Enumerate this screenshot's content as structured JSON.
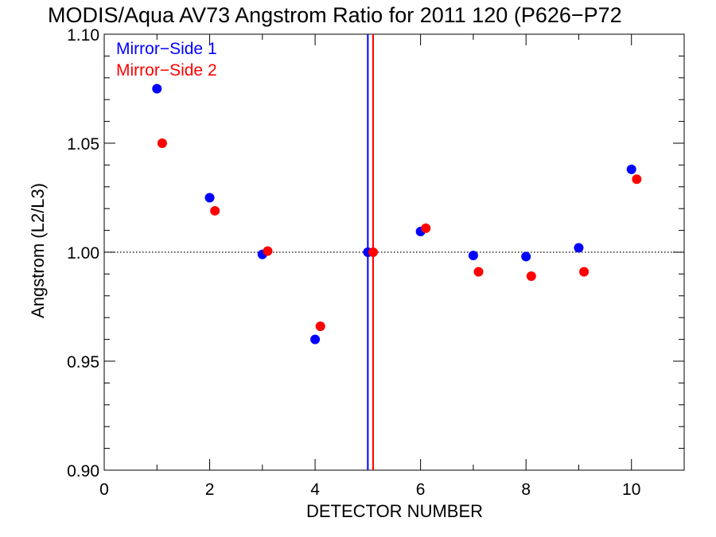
{
  "chart_data": {
    "type": "scatter",
    "title": "MODIS/Aqua AV73 Angstrom Ratio for 2011 120 (P626−P72",
    "xlabel": "DETECTOR NUMBER",
    "ylabel": "Angstrom (L2/L3)",
    "xlim": [
      0,
      11
    ],
    "ylim": [
      0.9,
      1.1
    ],
    "xticks": [
      0,
      2,
      4,
      6,
      8,
      10
    ],
    "xtick_labels": [
      "0",
      "2",
      "4",
      "6",
      "8",
      "10"
    ],
    "yticks": [
      0.9,
      0.95,
      1.0,
      1.05,
      1.1
    ],
    "ytick_labels": [
      "0.90",
      "0.95",
      "1.00",
      "1.05",
      "1.10"
    ],
    "legend_position": "top-left",
    "grid": false,
    "reference_line": {
      "y": 1.0,
      "style": "dotted",
      "color": "#000000"
    },
    "vertical_lines": [
      {
        "x": 5.0,
        "color": "#0000ff"
      },
      {
        "x": 5.1,
        "color": "#ff0000"
      }
    ],
    "series": [
      {
        "name": "Mirror−Side 1",
        "color": "#0000ff",
        "x": [
          1,
          2,
          3,
          4,
          5,
          6,
          7,
          8,
          9,
          10
        ],
        "y": [
          1.075,
          1.025,
          0.999,
          0.96,
          1.0,
          1.0095,
          0.9985,
          0.998,
          1.002,
          1.038
        ]
      },
      {
        "name": "Mirror−Side 2",
        "color": "#ff0000",
        "x": [
          1.1,
          2.1,
          3.1,
          4.1,
          5.1,
          6.1,
          7.1,
          8.1,
          9.1,
          10.1
        ],
        "y": [
          1.05,
          1.019,
          1.0005,
          0.966,
          1.0,
          1.011,
          0.991,
          0.989,
          0.991,
          1.0335
        ]
      }
    ]
  }
}
